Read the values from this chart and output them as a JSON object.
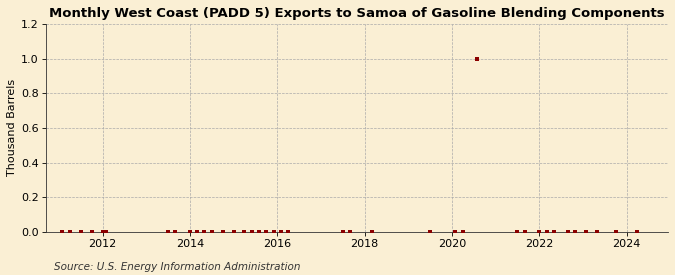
{
  "title": "Monthly West Coast (PADD 5) Exports to Samoa of Gasoline Blending Components",
  "ylabel": "Thousand Barrels",
  "source_text": "Source: U.S. Energy Information Administration",
  "background_color": "#faefd4",
  "plot_bg_color": "#faefd4",
  "grid_color": "#aaaaaa",
  "marker_color": "#8b0000",
  "ylim": [
    0,
    1.2
  ],
  "yticks": [
    0.0,
    0.2,
    0.4,
    0.6,
    0.8,
    1.0,
    1.2
  ],
  "xlim_start": 2010.7,
  "xlim_end": 2024.95,
  "xticks": [
    2012,
    2014,
    2016,
    2018,
    2020,
    2022,
    2024
  ],
  "title_fontsize": 9.5,
  "ylabel_fontsize": 8,
  "tick_fontsize": 8,
  "source_fontsize": 7.5,
  "data_points": [
    [
      2011.08,
      0.0
    ],
    [
      2011.25,
      0.0
    ],
    [
      2011.5,
      0.0
    ],
    [
      2011.75,
      0.0
    ],
    [
      2012.0,
      0.0
    ],
    [
      2012.08,
      0.0
    ],
    [
      2013.5,
      0.0
    ],
    [
      2013.67,
      0.0
    ],
    [
      2014.0,
      0.0
    ],
    [
      2014.17,
      0.0
    ],
    [
      2014.33,
      0.0
    ],
    [
      2014.5,
      0.0
    ],
    [
      2014.75,
      0.0
    ],
    [
      2015.0,
      0.0
    ],
    [
      2015.25,
      0.0
    ],
    [
      2015.42,
      0.0
    ],
    [
      2015.58,
      0.0
    ],
    [
      2015.75,
      0.0
    ],
    [
      2015.92,
      0.0
    ],
    [
      2016.08,
      0.0
    ],
    [
      2016.25,
      0.0
    ],
    [
      2017.5,
      0.0
    ],
    [
      2017.67,
      0.0
    ],
    [
      2018.17,
      0.0
    ],
    [
      2019.5,
      0.0
    ],
    [
      2020.08,
      0.0
    ],
    [
      2020.25,
      0.0
    ],
    [
      2020.58,
      1.0
    ],
    [
      2021.5,
      0.0
    ],
    [
      2021.67,
      0.0
    ],
    [
      2022.0,
      0.0
    ],
    [
      2022.17,
      0.0
    ],
    [
      2022.33,
      0.0
    ],
    [
      2022.67,
      0.0
    ],
    [
      2022.83,
      0.0
    ],
    [
      2023.08,
      0.0
    ],
    [
      2023.33,
      0.0
    ],
    [
      2023.75,
      0.0
    ],
    [
      2024.25,
      0.0
    ]
  ]
}
